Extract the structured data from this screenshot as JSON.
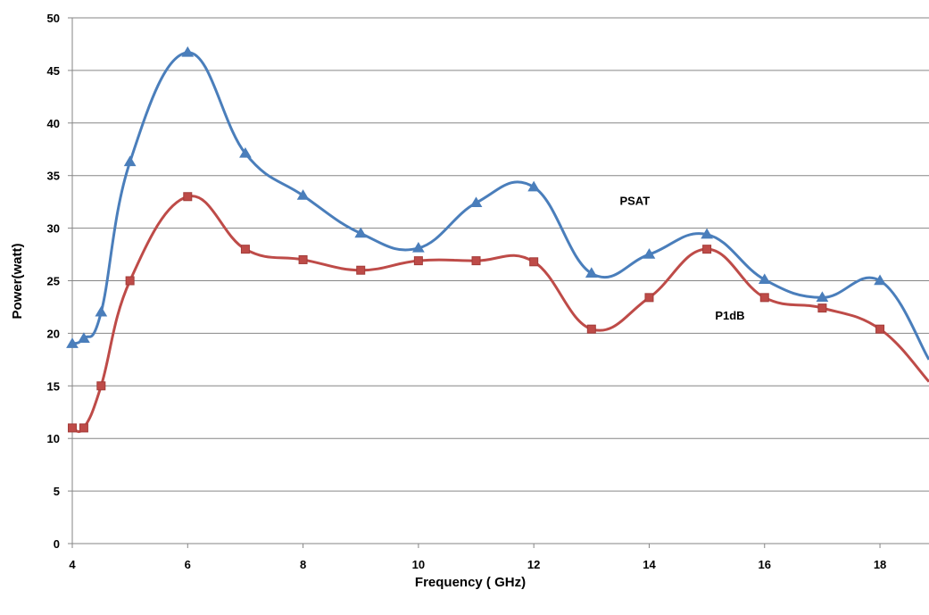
{
  "chart_data": {
    "type": "line",
    "title": "",
    "xlabel": "Frequency ( GHz)",
    "ylabel": "Power(watt)",
    "xlim": [
      4,
      18.85
    ],
    "ylim": [
      0,
      50
    ],
    "x_ticks": [
      4,
      6,
      8,
      10,
      12,
      14,
      16,
      18
    ],
    "y_ticks": [
      0,
      5,
      10,
      15,
      20,
      25,
      30,
      35,
      40,
      45,
      50
    ],
    "grid": "horizontal",
    "legend": "none",
    "series": [
      {
        "name": "PSAT",
        "color": "#4a7ebb",
        "marker": "triangle",
        "x": [
          4,
          4.2,
          4.5,
          5,
          6,
          7,
          8,
          9,
          10,
          11,
          12,
          13,
          14,
          15,
          16,
          17,
          18,
          18.85
        ],
        "y": [
          19.0,
          19.5,
          22.0,
          36.3,
          46.7,
          37.1,
          33.1,
          29.5,
          28.1,
          32.4,
          33.9,
          25.7,
          27.5,
          29.4,
          25.1,
          23.4,
          25.0,
          17.5
        ]
      },
      {
        "name": "P1dB",
        "color": "#be4b48",
        "marker": "square",
        "x": [
          4,
          4.2,
          4.5,
          5,
          6,
          7,
          8,
          9,
          10,
          11,
          12,
          13,
          14,
          15,
          16,
          17,
          18,
          18.85
        ],
        "y": [
          11.0,
          11.0,
          15.0,
          25.0,
          33.0,
          28.0,
          27.0,
          26.0,
          26.9,
          26.9,
          26.8,
          20.4,
          23.4,
          28.0,
          23.4,
          22.4,
          20.4,
          15.4
        ]
      }
    ],
    "annotations": [
      {
        "text": "PSAT",
        "series": "PSAT",
        "x": 13.75,
        "y": 32.2
      },
      {
        "text": "P1dB",
        "series": "P1dB",
        "x": 15.4,
        "y": 21.3
      }
    ]
  }
}
